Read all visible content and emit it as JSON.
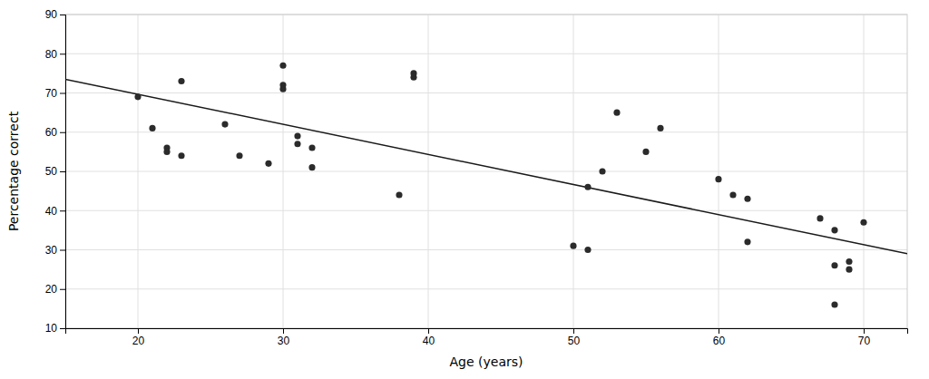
{
  "chart_data": {
    "type": "scatter",
    "xlabel": "Age (years)",
    "ylabel": "Percentage correct",
    "series": [
      {
        "type": "scatter",
        "color": "#2b2b2b",
        "marker": "circle",
        "x": [
          20,
          21,
          22,
          22,
          23,
          23,
          26,
          27,
          29,
          30,
          30,
          30,
          31,
          31,
          32,
          32,
          38,
          39,
          39,
          50,
          51,
          51,
          52,
          53,
          55,
          56,
          60,
          61,
          62,
          62,
          67,
          68,
          68,
          68,
          69,
          69,
          70
        ],
        "values": [
          69,
          61,
          56,
          55,
          54,
          73,
          62,
          54,
          52,
          77,
          72,
          71,
          59,
          57,
          56,
          51,
          44,
          74,
          75,
          31,
          46,
          30,
          50,
          65,
          55,
          61,
          48,
          44,
          43,
          32,
          38,
          35,
          26,
          16,
          27,
          25,
          37
        ]
      },
      {
        "type": "line",
        "color": "#1a1a1a",
        "line_style": "solid",
        "x": [
          15,
          73
        ],
        "values": [
          73.5,
          29.0
        ]
      }
    ],
    "xlim": [
      15,
      73
    ],
    "ylim": [
      10,
      90
    ],
    "xticks": [
      20,
      30,
      40,
      50,
      60,
      70
    ],
    "yticks": [
      10,
      20,
      30,
      40,
      50,
      60,
      70,
      80,
      90
    ],
    "grid": true
  }
}
